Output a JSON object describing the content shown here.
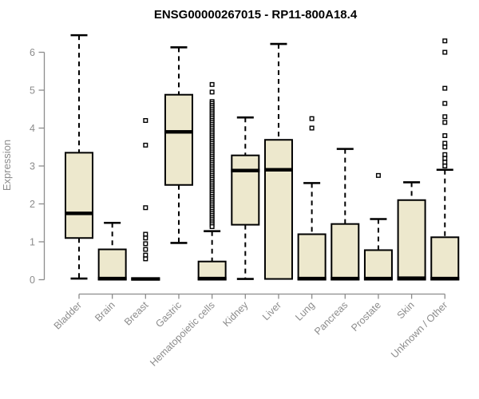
{
  "chart_data": {
    "type": "boxplot",
    "title": "ENSG00000267015 - RP11-800A18.4",
    "ylabel": "Expression",
    "xlabel": "",
    "ylim": [
      0,
      6
    ],
    "yticks": [
      0,
      1,
      2,
      3,
      4,
      5,
      6
    ],
    "grid": false,
    "legend": false,
    "categories": [
      "Bladder",
      "Brain",
      "Breast",
      "Gastric",
      "Hematopoietic cells",
      "Kidney",
      "Liver",
      "Lung",
      "Pancreas",
      "Prostate",
      "Skin",
      "Unknown / Other"
    ],
    "series": [
      {
        "category": "Bladder",
        "whisker_low": 0.03,
        "q1": 1.1,
        "median": 1.75,
        "q3": 3.35,
        "whisker_high": 6.45,
        "outliers": []
      },
      {
        "category": "Brain",
        "whisker_low": 0.0,
        "q1": 0.0,
        "median": 0.03,
        "q3": 0.8,
        "whisker_high": 1.5,
        "outliers": []
      },
      {
        "category": "Breast",
        "whisker_low": 0.0,
        "q1": 0.0,
        "median": 0.02,
        "q3": 0.04,
        "whisker_high": 0.05,
        "outliers": [
          4.2,
          3.55,
          1.9,
          1.2,
          1.1,
          0.95,
          0.8,
          0.65,
          0.55
        ]
      },
      {
        "category": "Gastric",
        "whisker_low": 0.97,
        "q1": 2.5,
        "median": 3.9,
        "q3": 4.88,
        "whisker_high": 6.13,
        "outliers": []
      },
      {
        "category": "Hematopoietic cells",
        "whisker_low": 0.0,
        "q1": 0.0,
        "median": 0.03,
        "q3": 0.48,
        "whisker_high": 1.28,
        "outliers": [
          5.15,
          4.95,
          4.7,
          4.65,
          4.6,
          4.55,
          4.5,
          4.45,
          4.4,
          4.35,
          4.3,
          4.25,
          4.2,
          4.15,
          4.1,
          4.05,
          4.0,
          3.95,
          3.9,
          3.85,
          3.8,
          3.75,
          3.7,
          3.65,
          3.6,
          3.55,
          3.5,
          3.45,
          3.4,
          3.35,
          3.3,
          3.25,
          3.2,
          3.15,
          3.1,
          3.05,
          3.0,
          2.95,
          2.9,
          2.85,
          2.8,
          2.75,
          2.7,
          2.65,
          2.6,
          2.55,
          2.5,
          2.45,
          2.4,
          2.35,
          2.3,
          2.25,
          2.2,
          2.15,
          2.1,
          2.05,
          2.0,
          1.95,
          1.9,
          1.85,
          1.8,
          1.75,
          1.7,
          1.65,
          1.6,
          1.55,
          1.5,
          1.45,
          1.4
        ]
      },
      {
        "category": "Kidney",
        "whisker_low": 0.02,
        "q1": 1.45,
        "median": 2.88,
        "q3": 3.28,
        "whisker_high": 4.28,
        "outliers": []
      },
      {
        "category": "Liver",
        "whisker_low": 0.0,
        "q1": 0.02,
        "median": 2.9,
        "q3": 3.69,
        "whisker_high": 6.22,
        "outliers": []
      },
      {
        "category": "Lung",
        "whisker_low": 0.0,
        "q1": 0.0,
        "median": 0.03,
        "q3": 1.2,
        "whisker_high": 2.55,
        "outliers": [
          4.25,
          4.0
        ]
      },
      {
        "category": "Pancreas",
        "whisker_low": 0.0,
        "q1": 0.0,
        "median": 0.03,
        "q3": 1.47,
        "whisker_high": 3.45,
        "outliers": []
      },
      {
        "category": "Prostate",
        "whisker_low": 0.0,
        "q1": 0.0,
        "median": 0.03,
        "q3": 0.78,
        "whisker_high": 1.6,
        "outliers": [
          2.75
        ]
      },
      {
        "category": "Skin",
        "whisker_low": 0.0,
        "q1": 0.0,
        "median": 0.04,
        "q3": 2.1,
        "whisker_high": 2.57,
        "outliers": []
      },
      {
        "category": "Unknown / Other",
        "whisker_low": 0.0,
        "q1": 0.0,
        "median": 0.03,
        "q3": 1.12,
        "whisker_high": 2.9,
        "outliers": [
          6.3,
          6.0,
          5.05,
          4.65,
          4.3,
          4.15,
          3.8,
          3.6,
          3.5,
          3.3,
          3.2,
          3.1,
          3.0
        ]
      }
    ],
    "colors": {
      "box_fill": "#EDE8CD",
      "box_stroke": "#000000",
      "axis": "#8C8C8C",
      "title_color": "#000000"
    }
  }
}
